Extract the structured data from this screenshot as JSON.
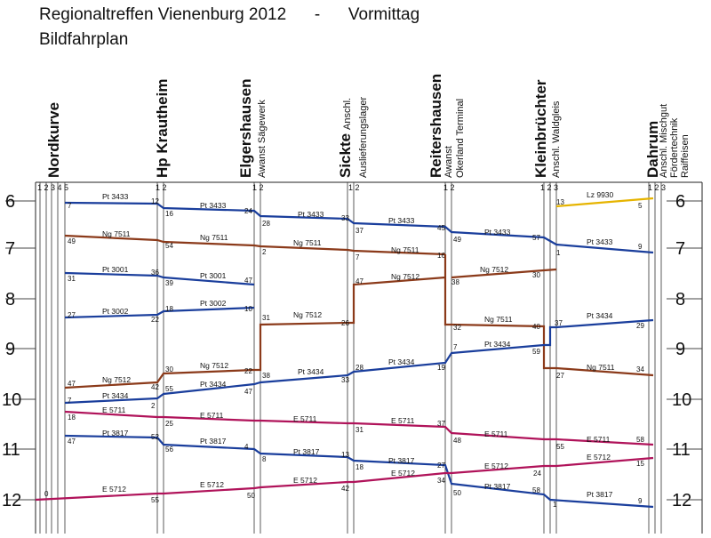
{
  "header": {
    "title": "Regionaltreffen Vienenburg 2012",
    "separator": "-",
    "period": "Vormittag",
    "subtitle": "Bildfahrplan"
  },
  "colors": {
    "Pt": "#1a3e9c",
    "Ng": "#8b3a1a",
    "E": "#b0135a",
    "Lz": "#e6b400"
  },
  "stations": [
    {
      "name": "Nordkurve",
      "sub": [],
      "tracks": "1 2 3 4 5"
    },
    {
      "name": "Hp Krautheim",
      "sub": [],
      "tracks": "1 2"
    },
    {
      "name": "Elgershausen",
      "sub": [
        "Awanst Sägewerk"
      ],
      "tracks": "1 2"
    },
    {
      "name": "Sickte",
      "sub": [
        "Anschl.",
        "Auslieferungslager"
      ],
      "tracks": "1 2"
    },
    {
      "name": "Reitershausen",
      "sub": [
        "Awanst",
        "Okerland Terminal"
      ],
      "tracks": "1 2"
    },
    {
      "name": "Kleinbrüchter",
      "sub": [
        "Anschl. Waldgleis"
      ],
      "tracks": "1 2 3"
    },
    {
      "name": "Dahrum",
      "sub": [
        "Anschl. Mischgut",
        "Fördertechnik",
        "Raiffeisen"
      ],
      "tracks": "1 2 3"
    }
  ],
  "hours": [
    "6",
    "7",
    "8",
    "9",
    "10",
    "11",
    "12"
  ],
  "trains": [
    {
      "id": "Pt 3433",
      "type": "Pt",
      "labels": [
        "Pt 3433",
        "Pt 3433",
        "Pt 3433",
        "Pt 3433",
        "Pt 3433",
        "Pt 3433"
      ],
      "times": [
        "7",
        "12",
        "16",
        "24",
        "28",
        "33",
        "37",
        "45",
        "49",
        "57",
        "1",
        "9"
      ]
    },
    {
      "id": "Ng 7511 (a)",
      "type": "Ng",
      "labels": [
        "Ng 7511",
        "Ng 7511",
        "Ng 7511",
        "Ng 7511"
      ],
      "times": [
        "49",
        "54",
        "2",
        "7",
        "16"
      ]
    },
    {
      "id": "Ng 7511 (b)",
      "type": "Ng",
      "labels": [
        "Ng 7511",
        "Ng 7511"
      ],
      "times": [
        "32",
        "40",
        "27",
        "34"
      ]
    },
    {
      "id": "Pt 3001",
      "type": "Pt",
      "labels": [
        "Pt 3001",
        "Pt 3001"
      ],
      "times": [
        "31",
        "36",
        "39",
        "47"
      ]
    },
    {
      "id": "Ng 7512 (a)",
      "type": "Ng",
      "labels": [
        "Ng 7512",
        "Ng 7512"
      ],
      "times": [
        "30",
        "38"
      ]
    },
    {
      "id": "Pt 3002",
      "type": "Pt",
      "labels": [
        "Pt 3002",
        "Pt 3002"
      ],
      "times": [
        "27",
        "22",
        "18",
        "10"
      ]
    },
    {
      "id": "Ng 7512 (b)",
      "type": "Ng",
      "labels": [
        "Ng 7512",
        "Ng 7512",
        "Ng 7512",
        "Ng 7512"
      ],
      "times": [
        "47",
        "42",
        "30",
        "22",
        "31",
        "26",
        "47"
      ]
    },
    {
      "id": "Pt 3434",
      "type": "Pt",
      "labels": [
        "Pt 3434",
        "Pt 3434",
        "Pt 3434",
        "Pt 3434",
        "Pt 3434",
        "Pt 3434"
      ],
      "times": [
        "7",
        "2",
        "55",
        "47",
        "38",
        "33",
        "28",
        "19",
        "7",
        "59",
        "37",
        "29"
      ]
    },
    {
      "id": "E 5711",
      "type": "E",
      "labels": [
        "E 5711",
        "E 5711",
        "E 5711",
        "E 5711",
        "E 5711",
        "E 5711"
      ],
      "times": [
        "18",
        "25",
        "31",
        "37",
        "48",
        "55",
        "58"
      ]
    },
    {
      "id": "Pt 3817",
      "type": "Pt",
      "labels": [
        "Pt 3817",
        "Pt 3817",
        "Pt 3817",
        "Pt 3817",
        "Pt 3817",
        "Pt 3817"
      ],
      "times": [
        "47",
        "52",
        "56",
        "4",
        "8",
        "13",
        "18",
        "27",
        "50",
        "58",
        "1",
        "9"
      ]
    },
    {
      "id": "E 5712",
      "type": "E",
      "labels": [
        "E 5712",
        "E 5712",
        "E 5712",
        "E 5712",
        "E 5712",
        "E 5712"
      ],
      "times": [
        "0",
        "55",
        "50",
        "42",
        "34",
        "24",
        "15"
      ]
    },
    {
      "id": "Lz 9930",
      "type": "Lz",
      "labels": [
        "Lz 9930"
      ],
      "times": [
        "13",
        "5"
      ]
    }
  ]
}
